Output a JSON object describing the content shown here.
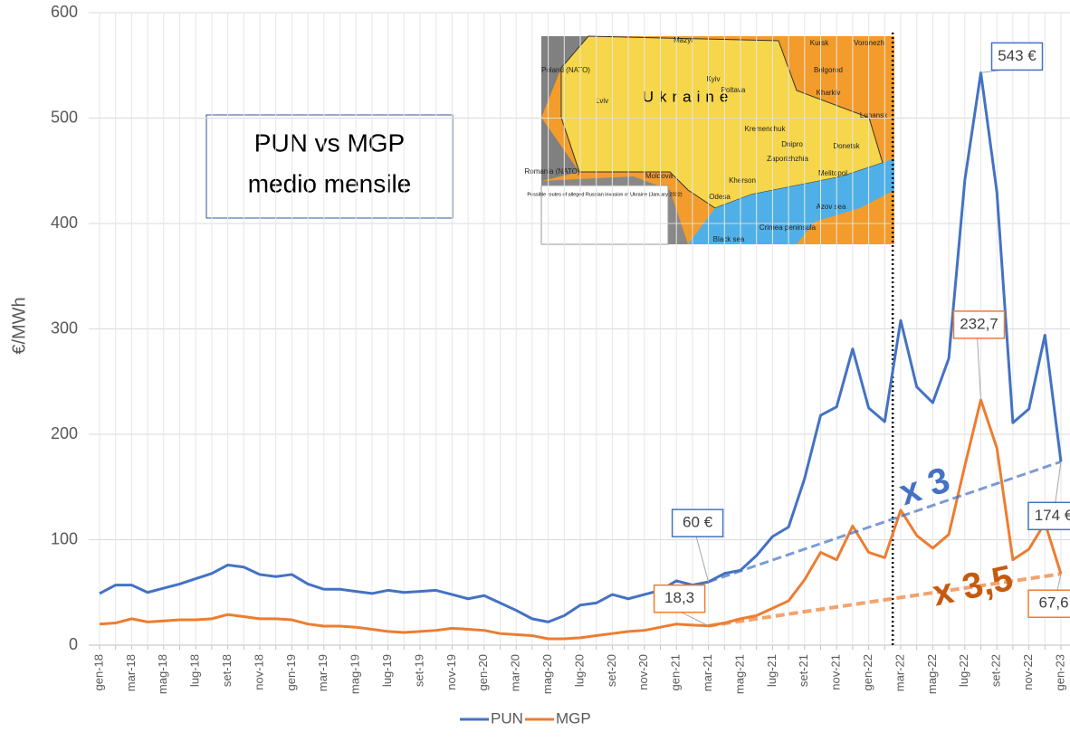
{
  "chart_data": {
    "type": "line",
    "title": [
      "PUN vs MGP",
      "medio mensile"
    ],
    "y_label": "€/MWh",
    "categories": [
      "gen-18",
      null,
      "mar-18",
      null,
      "mag-18",
      null,
      "lug-18",
      null,
      "set-18",
      null,
      "nov-18",
      null,
      "gen-19",
      null,
      "mar-19",
      null,
      "mag-19",
      null,
      "lug-19",
      null,
      "set-19",
      null,
      "nov-19",
      null,
      "gen-20",
      null,
      "mar-20",
      null,
      "mag-20",
      null,
      "lug-20",
      null,
      "set-20",
      null,
      "nov-20",
      null,
      "gen-21",
      null,
      "mar-21",
      null,
      "mag-21",
      null,
      "lug-21",
      null,
      "set-21",
      null,
      "nov-21",
      null,
      "gen-22",
      null,
      "mar-22",
      null,
      "mag-22",
      null,
      "lug-22",
      null,
      "set-22",
      null,
      "nov-22",
      null,
      "gen-23"
    ],
    "series": [
      {
        "name": "PUN",
        "color": "#4472c4",
        "values": [
          49,
          57,
          57,
          50,
          54,
          58,
          63,
          68,
          76,
          74,
          67,
          65,
          67,
          58,
          53,
          53,
          51,
          49,
          52,
          50,
          51,
          52,
          48,
          44,
          47,
          40,
          33,
          25,
          22,
          28,
          38,
          40,
          48,
          44,
          48,
          52,
          61,
          57,
          60,
          68,
          71,
          85,
          103,
          112,
          158,
          218,
          226,
          281,
          225,
          212,
          308,
          245,
          230,
          272,
          441,
          543,
          430,
          211,
          224,
          294,
          174
        ],
        "value_labels": [
          null,
          null,
          null,
          null,
          null,
          null,
          null,
          null,
          null,
          null,
          null,
          null,
          null,
          null,
          null,
          null,
          null,
          null,
          null,
          null,
          null,
          null,
          null,
          null,
          null,
          null,
          null,
          null,
          null,
          null,
          null,
          null,
          null,
          null,
          null,
          null,
          null,
          null,
          "60 €",
          null,
          null,
          null,
          null,
          null,
          null,
          null,
          null,
          null,
          null,
          null,
          null,
          null,
          null,
          null,
          null,
          "543 €",
          null,
          null,
          null,
          null,
          "174 €"
        ]
      },
      {
        "name": "MGP",
        "color": "#ed7d31",
        "values": [
          20,
          21,
          25,
          22,
          23,
          24,
          24,
          25,
          29,
          27,
          25,
          25,
          24,
          20,
          18,
          18,
          17,
          15,
          13,
          12,
          13,
          14,
          16,
          15,
          14,
          11,
          10,
          9,
          6,
          6,
          7,
          9,
          11,
          13,
          14,
          17,
          20,
          19,
          18.3,
          21,
          25,
          28,
          35,
          42,
          62,
          88,
          81,
          113,
          88,
          83,
          128,
          104,
          92,
          105,
          170,
          232.7,
          187,
          81,
          91,
          116,
          67.6
        ],
        "value_labels": [
          null,
          null,
          null,
          null,
          null,
          null,
          null,
          null,
          null,
          null,
          null,
          null,
          null,
          null,
          null,
          null,
          null,
          null,
          null,
          null,
          null,
          null,
          null,
          null,
          null,
          null,
          null,
          null,
          null,
          null,
          null,
          null,
          null,
          null,
          null,
          null,
          null,
          null,
          "18,3",
          null,
          null,
          null,
          null,
          null,
          null,
          null,
          null,
          null,
          null,
          null,
          null,
          null,
          null,
          null,
          null,
          "232,7",
          null,
          null,
          null,
          null,
          "67,6"
        ]
      }
    ],
    "multipliers": [
      "x 3",
      "x 3,5"
    ],
    "ylim": [
      0,
      600
    ],
    "yticks": [
      0,
      100,
      200,
      300,
      400,
      500,
      600
    ],
    "grid": true,
    "legend": "bottom",
    "inset": {
      "labels": [
        "Poland (NATO)",
        "Ukraine",
        "Kyiv",
        "Lviv",
        "Poltava",
        "Kharkiv",
        "Kremenchuk",
        "Dnipro",
        "Zaporizhzhia",
        "Melitopol",
        "Kherson",
        "Odesa",
        "Moldova",
        "Romania (NATO)",
        "Azov sea",
        "Black sea",
        "Crimea peninsula",
        "Kursk",
        "Voronezh",
        "Belgorod",
        "Luhansk",
        "Donetsk",
        "Mazyr"
      ],
      "caption": "Possible routes of alleged Russian invasion of Ukraine (January 2022)"
    }
  }
}
